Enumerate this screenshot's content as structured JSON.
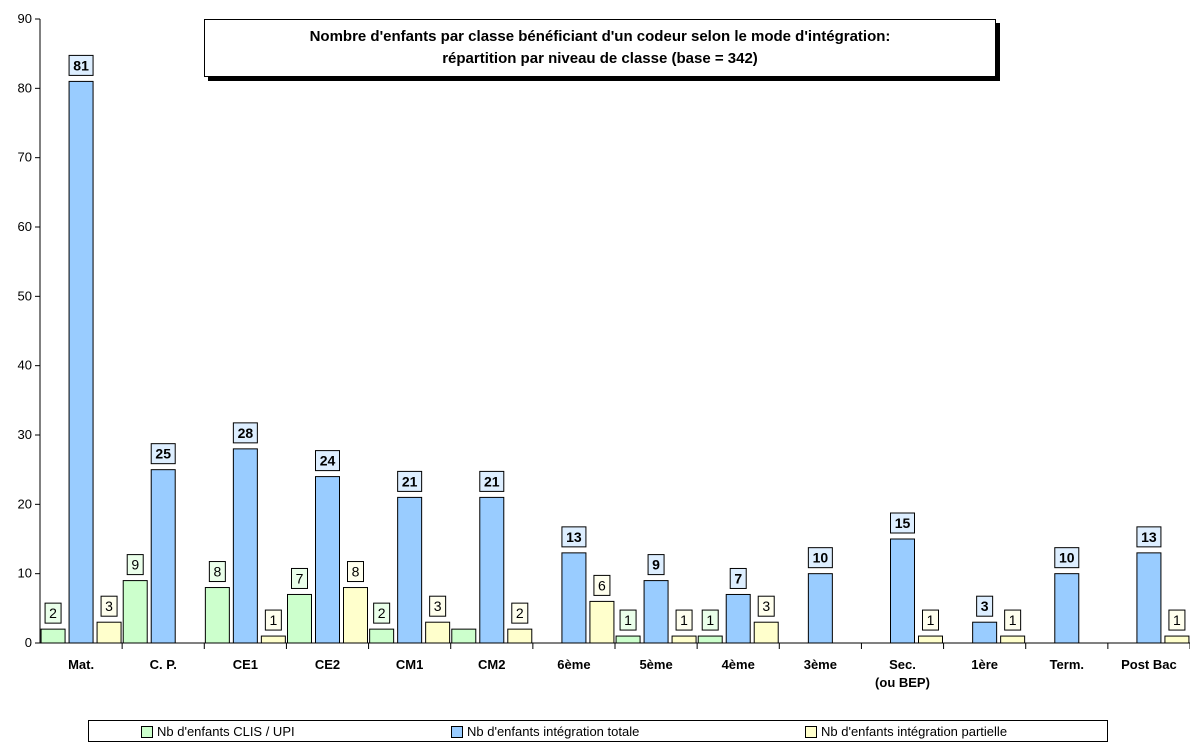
{
  "chart_data": {
    "type": "bar",
    "title_line1": "Nombre d'enfants par classe bénéficiant d'un codeur selon le mode d'intégration:",
    "title_line2": "répartition par niveau de classe (base = 342)",
    "categories": [
      "Mat.",
      "C.  P.",
      "CE1",
      "CE2",
      "CM1",
      "CM2",
      "6ème",
      "5ème",
      "4ème",
      "3ème",
      "Sec.|(ou BEP)",
      "1ère",
      "Term.",
      "Post Bac"
    ],
    "series": [
      {
        "name": "Nb d'enfants CLIS / UPI",
        "color": "#ccffcc",
        "values": [
          2,
          9,
          8,
          7,
          2,
          2,
          0,
          1,
          1,
          0,
          0,
          0,
          0,
          0
        ],
        "labels": [
          "2",
          "9",
          "8",
          "7",
          "2",
          "",
          "",
          "1",
          "1",
          "",
          "",
          "",
          "",
          ""
        ]
      },
      {
        "name": "Nb d'enfants intégration totale",
        "color": "#99ccff",
        "values": [
          81,
          25,
          28,
          24,
          21,
          21,
          13,
          9,
          7,
          10,
          15,
          3,
          10,
          13
        ],
        "labels": [
          "81",
          "25",
          "28",
          "24",
          "21",
          "21",
          "13",
          "9",
          "7",
          "10",
          "15",
          "3",
          "10",
          "13"
        ]
      },
      {
        "name": "Nb d'enfants intégration partielle",
        "color": "#ffffcc",
        "values": [
          3,
          0,
          1,
          8,
          3,
          2,
          6,
          1,
          3,
          0,
          1,
          1,
          0,
          1
        ],
        "labels": [
          "3",
          "",
          "1",
          "8",
          "3",
          "2",
          "6",
          "1",
          "3",
          "",
          "1",
          "1",
          "",
          "1"
        ]
      }
    ],
    "ylim": [
      0,
      90
    ],
    "yticks": [
      "0",
      "10",
      "20",
      "30",
      "40",
      "50",
      "60",
      "70",
      "80",
      "90"
    ],
    "grid": false,
    "legend_position": "bottom"
  }
}
